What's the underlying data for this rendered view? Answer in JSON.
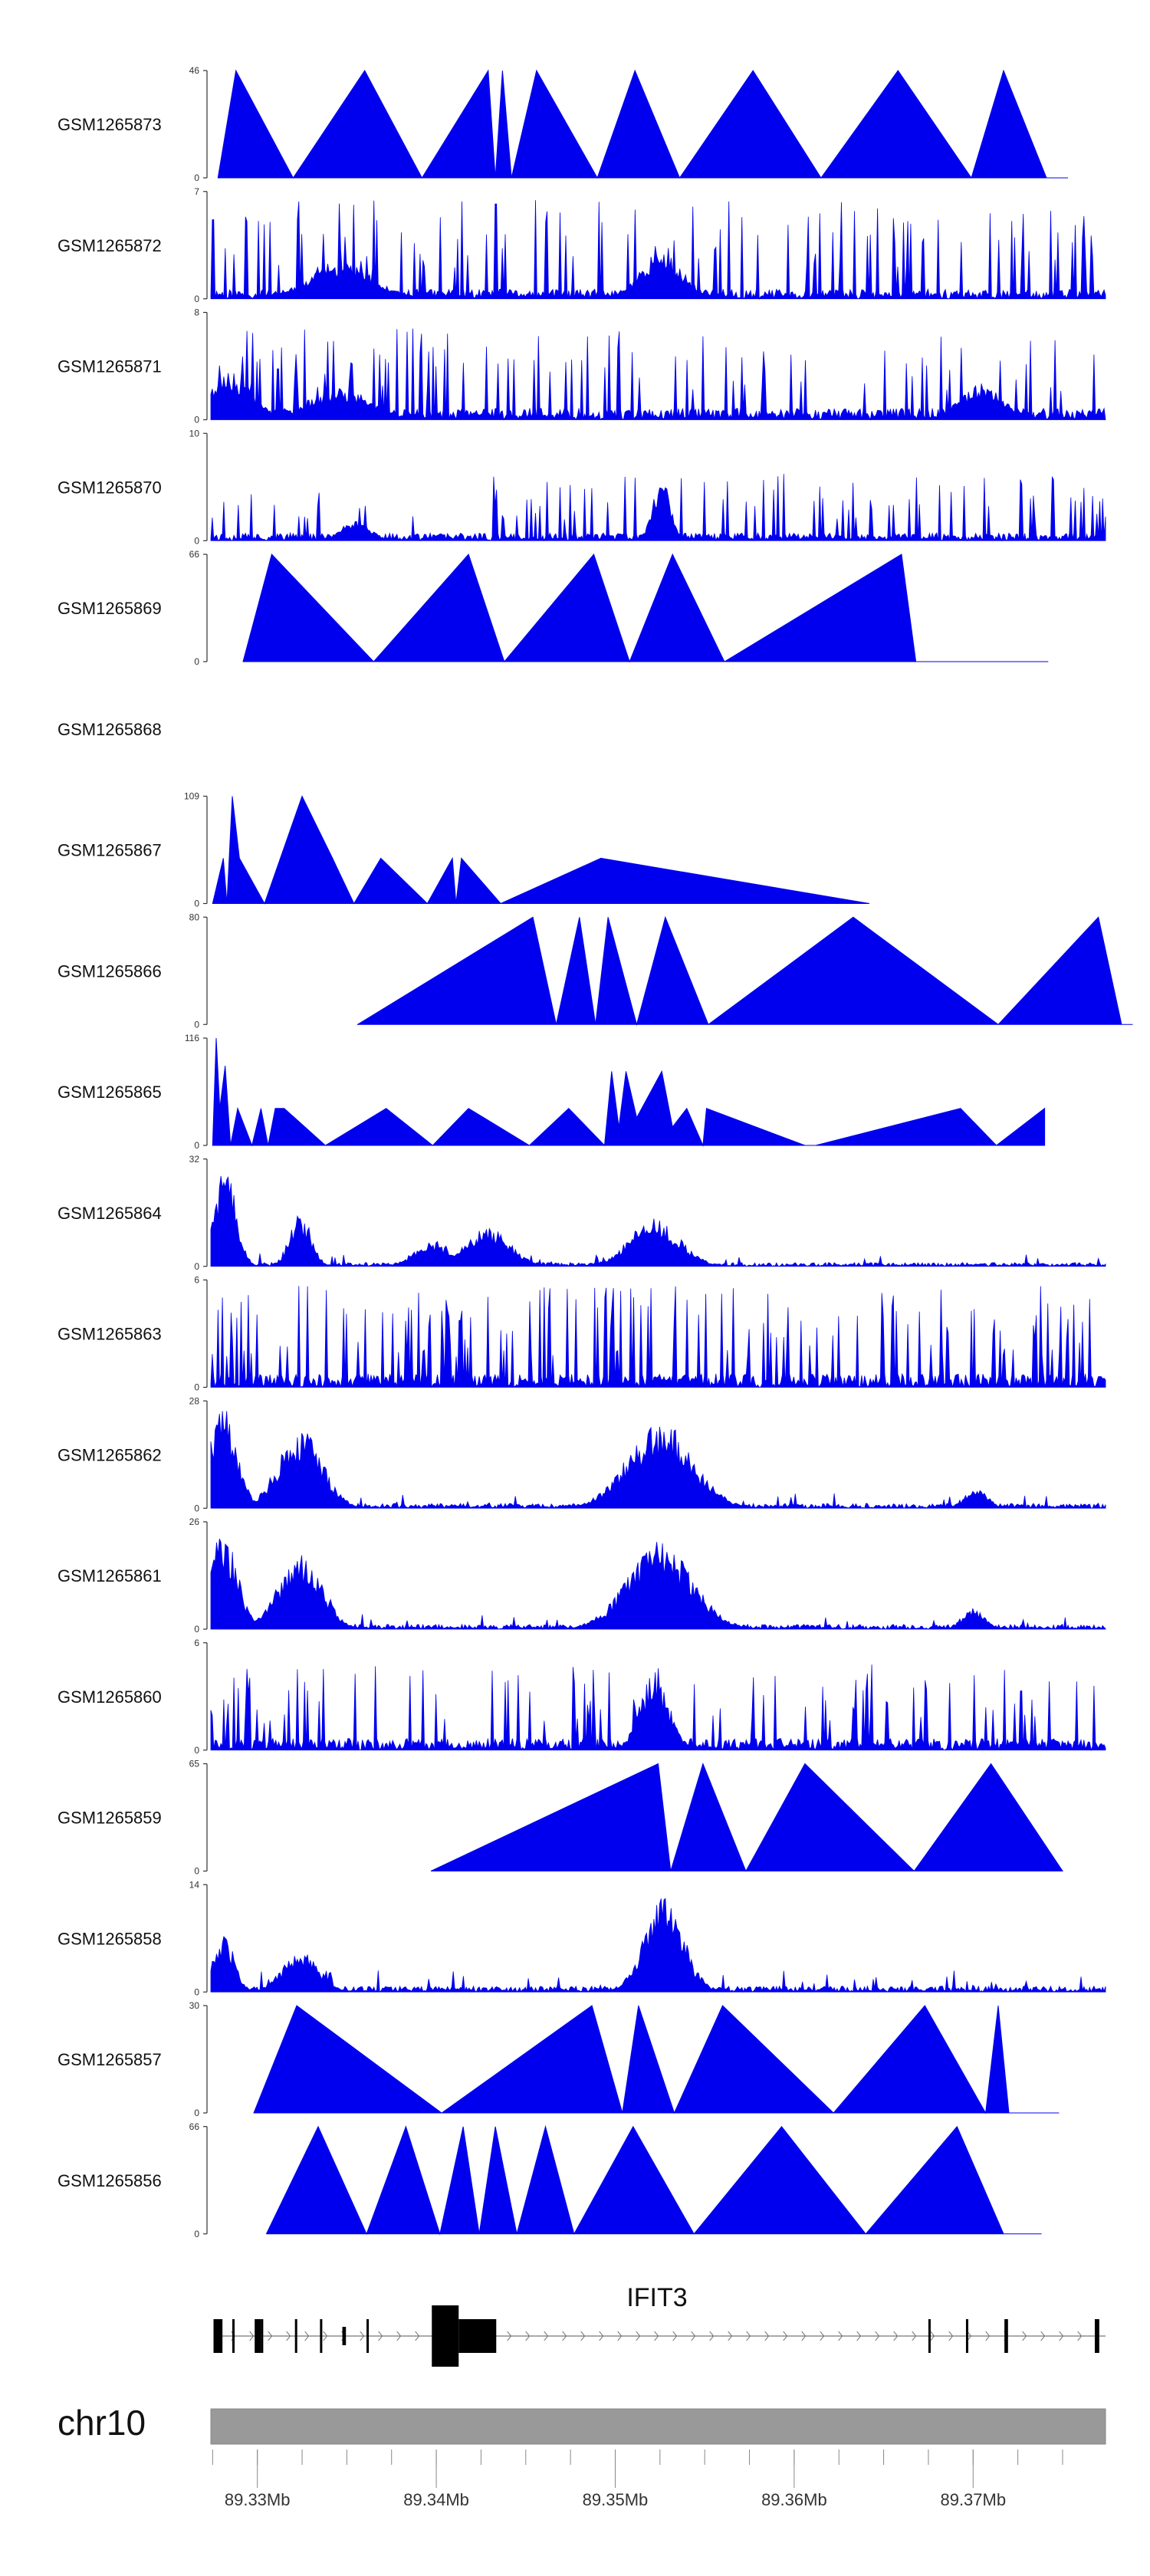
{
  "chart_data": {
    "type": "area",
    "chromosome": "chr10",
    "gene": "IFIT3",
    "x_tick_labels": [
      "89.33Mb",
      "89.34Mb",
      "89.35Mb",
      "89.36Mb",
      "89.37Mb"
    ],
    "x_ticks_mb": [
      89.33,
      89.34,
      89.35,
      89.36,
      89.37
    ],
    "xlim_mb": [
      89.3274,
      89.3774
    ],
    "gene_model": {
      "exons_mb": [
        [
          89.32755,
          89.32805
        ],
        [
          89.32985,
          89.3302
        ],
        [
          89.33475,
          89.33495
        ],
        [
          89.33975,
          89.34125
        ],
        [
          89.34125,
          89.34335
        ],
        [
          89.37175,
          89.37195
        ],
        [
          89.3768,
          89.37705
        ]
      ],
      "introns_mb": [
        [
          89.3279,
          89.3774
        ]
      ]
    },
    "tracks": [
      {
        "name": "GSM1265873",
        "ymax": 46,
        "ylim": [
          0,
          46
        ],
        "style": "triangles",
        "x_mb": [
          89.3278,
          89.3288,
          89.332,
          89.336,
          89.3392,
          89.3429,
          89.3433,
          89.3437,
          89.3442,
          89.3456,
          89.349,
          89.3511,
          89.3536,
          89.3577,
          89.3615,
          89.3658,
          89.3699,
          89.3717,
          89.3741,
          89.3753
        ],
        "y": [
          0,
          46,
          0,
          46,
          0,
          46,
          0,
          46,
          0,
          46,
          0,
          46,
          0,
          46,
          0,
          46,
          0,
          46,
          0,
          0
        ]
      },
      {
        "name": "GSM1265872",
        "ymax": 7,
        "ylim": [
          0,
          7
        ],
        "style": "dense",
        "seed": 11,
        "base": 0.1,
        "spike_rate": 0.14,
        "spike_max": 0.92,
        "regions": [
          {
            "c": 89.3346,
            "w": 0.0018,
            "a": 0.35
          },
          {
            "c": 89.3526,
            "w": 0.0012,
            "a": 0.45
          }
        ]
      },
      {
        "name": "GSM1265871",
        "ymax": 8,
        "ylim": [
          0,
          8
        ],
        "style": "dense",
        "seed": 23,
        "base": 0.12,
        "spike_rate": 0.13,
        "spike_max": 0.85,
        "regions": [
          {
            "c": 89.3285,
            "w": 0.0012,
            "a": 0.45
          },
          {
            "c": 89.3346,
            "w": 0.0018,
            "a": 0.3
          },
          {
            "c": 89.3705,
            "w": 0.0012,
            "a": 0.35
          }
        ]
      },
      {
        "name": "GSM1265870",
        "ymax": 10,
        "ylim": [
          0,
          10
        ],
        "style": "dense",
        "seed": 37,
        "base": 0.08,
        "spike_rate": 0.12,
        "spike_max": 0.65,
        "regions": [
          {
            "c": 89.3526,
            "w": 0.0005,
            "a": 0.6
          },
          {
            "c": 89.3355,
            "w": 0.0008,
            "a": 0.2
          }
        ]
      },
      {
        "name": "GSM1265869",
        "ymax": 66,
        "ylim": [
          0,
          66
        ],
        "style": "triangles",
        "x_mb": [
          89.3292,
          89.3308,
          89.3365,
          89.3418,
          89.3438,
          89.3488,
          89.3508,
          89.3532,
          89.3561,
          89.366,
          89.3668,
          89.3742
        ],
        "y": [
          0,
          66,
          0,
          66,
          0,
          66,
          0,
          66,
          0,
          66,
          0,
          0
        ]
      },
      {
        "name": "GSM1265868",
        "ymax": null,
        "style": "empty"
      },
      {
        "name": "GSM1265867",
        "ymax": 109,
        "ylim": [
          0,
          109
        ],
        "style": "triangles",
        "x_mb": [
          89.3275,
          89.3281,
          89.3283,
          89.3286,
          89.329,
          89.3304,
          89.3325,
          89.3342,
          89.3354,
          89.3369,
          89.3395,
          89.3409,
          89.3411,
          89.3414,
          89.3436,
          89.3492,
          89.3642
        ],
        "y": [
          0,
          46,
          0,
          109,
          46,
          0,
          109,
          46,
          0,
          46,
          0,
          46,
          0,
          46,
          0,
          46,
          0
        ]
      },
      {
        "name": "GSM1265866",
        "ymax": 80,
        "ylim": [
          0,
          80
        ],
        "style": "triangles",
        "x_mb": [
          89.3356,
          89.3454,
          89.3467,
          89.348,
          89.3489,
          89.3496,
          89.3512,
          89.3528,
          89.3552,
          89.3633,
          89.3714,
          89.377,
          89.3783,
          89.3789
        ],
        "y": [
          0,
          80,
          0,
          80,
          0,
          80,
          0,
          80,
          0,
          80,
          0,
          80,
          0,
          0
        ]
      },
      {
        "name": "GSM1265865",
        "ymax": 116,
        "ylim": [
          0,
          116
        ],
        "style": "triangles",
        "x_mb": [
          89.3275,
          89.3277,
          89.3279,
          89.3282,
          89.3285,
          89.3289,
          89.3297,
          89.3302,
          89.3306,
          89.331,
          89.3315,
          89.3338,
          89.3372,
          89.3398,
          89.3418,
          89.3452,
          89.3474,
          89.3494,
          89.3498,
          89.3502,
          89.3506,
          89.3512,
          89.3526,
          89.3532,
          89.354,
          89.3549,
          89.3551,
          89.3606,
          89.3612,
          89.3693,
          89.3713,
          89.374
        ],
        "y": [
          0,
          116,
          40,
          86,
          0,
          40,
          0,
          40,
          0,
          40,
          40,
          0,
          40,
          0,
          40,
          0,
          40,
          0,
          80,
          20,
          80,
          30,
          80,
          20,
          40,
          0,
          40,
          0,
          0,
          40,
          0,
          40
        ]
      },
      {
        "name": "GSM1265864",
        "ymax": 32,
        "ylim": [
          0,
          32
        ],
        "style": "dense",
        "seed": 51,
        "base": 0.04,
        "spike_rate": 0.06,
        "spike_max": 0.12,
        "regions": [
          {
            "c": 89.3282,
            "w": 0.0006,
            "a": 0.95
          },
          {
            "c": 89.3324,
            "w": 0.0006,
            "a": 0.5
          },
          {
            "c": 89.3398,
            "w": 0.001,
            "a": 0.25
          },
          {
            "c": 89.3429,
            "w": 0.0012,
            "a": 0.38
          },
          {
            "c": 89.3522,
            "w": 0.0014,
            "a": 0.45
          }
        ]
      },
      {
        "name": "GSM1265863",
        "ymax": 6,
        "ylim": [
          0,
          6
        ],
        "style": "dense",
        "seed": 67,
        "base": 0.14,
        "spike_rate": 0.18,
        "spike_max": 0.95,
        "regions": []
      },
      {
        "name": "GSM1265862",
        "ymax": 28,
        "ylim": [
          0,
          28
        ],
        "style": "dense",
        "seed": 79,
        "base": 0.05,
        "spike_rate": 0.05,
        "spike_max": 0.14,
        "regions": [
          {
            "c": 89.3281,
            "w": 0.0008,
            "a": 0.95
          },
          {
            "c": 89.3324,
            "w": 0.0012,
            "a": 0.78
          },
          {
            "c": 89.3525,
            "w": 0.0018,
            "a": 0.82
          },
          {
            "c": 89.3702,
            "w": 0.0006,
            "a": 0.2
          }
        ]
      },
      {
        "name": "GSM1265861",
        "ymax": 26,
        "ylim": [
          0,
          26
        ],
        "style": "dense",
        "seed": 83,
        "base": 0.05,
        "spike_rate": 0.05,
        "spike_max": 0.14,
        "regions": [
          {
            "c": 89.3281,
            "w": 0.0008,
            "a": 0.92
          },
          {
            "c": 89.3324,
            "w": 0.0012,
            "a": 0.75
          },
          {
            "c": 89.3525,
            "w": 0.0018,
            "a": 0.82
          },
          {
            "c": 89.37,
            "w": 0.0006,
            "a": 0.2
          }
        ]
      },
      {
        "name": "GSM1265860",
        "ymax": 6,
        "ylim": [
          0,
          6
        ],
        "style": "dense",
        "seed": 97,
        "base": 0.12,
        "spike_rate": 0.14,
        "spike_max": 0.8,
        "regions": [
          {
            "c": 89.3522,
            "w": 0.0008,
            "a": 0.75
          }
        ]
      },
      {
        "name": "GSM1265859",
        "ymax": 65,
        "ylim": [
          0,
          65
        ],
        "style": "triangles",
        "x_mb": [
          89.3397,
          89.3524,
          89.3531,
          89.3549,
          89.3573,
          89.3606,
          89.3667,
          89.371,
          89.375
        ],
        "y": [
          0,
          65,
          0,
          65,
          0,
          65,
          0,
          65,
          0
        ]
      },
      {
        "name": "GSM1265858",
        "ymax": 14,
        "ylim": [
          0,
          14
        ],
        "style": "dense",
        "seed": 103,
        "base": 0.06,
        "spike_rate": 0.06,
        "spike_max": 0.2,
        "regions": [
          {
            "c": 89.3281,
            "w": 0.0006,
            "a": 0.55
          },
          {
            "c": 89.3324,
            "w": 0.001,
            "a": 0.4
          },
          {
            "c": 89.3527,
            "w": 0.0011,
            "a": 0.9
          }
        ]
      },
      {
        "name": "GSM1265857",
        "ymax": 30,
        "ylim": [
          0,
          30
        ],
        "style": "triangles",
        "x_mb": [
          89.3298,
          89.3322,
          89.3403,
          89.3487,
          89.3504,
          89.3513,
          89.3533,
          89.356,
          89.3622,
          89.3673,
          89.3707,
          89.3714,
          89.372,
          89.3748
        ],
        "y": [
          0,
          30,
          0,
          30,
          0,
          30,
          0,
          30,
          0,
          30,
          0,
          30,
          0,
          0
        ]
      },
      {
        "name": "GSM1265856",
        "ymax": 66,
        "ylim": [
          0,
          66
        ],
        "style": "triangles",
        "x_mb": [
          89.3305,
          89.3334,
          89.3361,
          89.3383,
          89.3402,
          89.3415,
          89.3424,
          89.3433,
          89.3445,
          89.3461,
          89.3477,
          89.351,
          89.3544,
          89.3593,
          89.364,
          89.3691,
          89.3717,
          89.3738
        ],
        "y": [
          0,
          66,
          0,
          66,
          0,
          66,
          0,
          66,
          0,
          66,
          0,
          66,
          0,
          66,
          0,
          66,
          0,
          0
        ]
      }
    ]
  },
  "colors": {
    "signal": "#0000ee",
    "ideogram": "#999999",
    "gene": "#000000",
    "axis": "#333333"
  }
}
